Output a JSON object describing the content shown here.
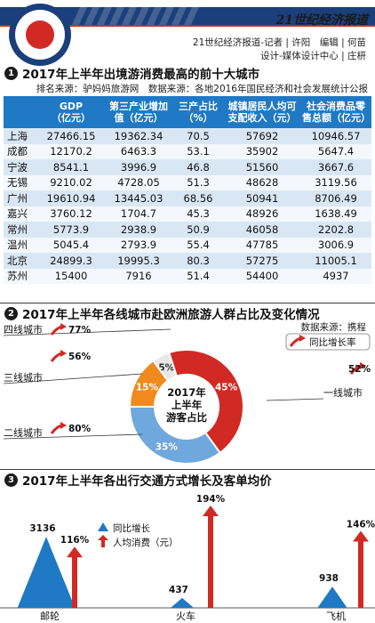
{
  "header": {
    "paper_name": "21世纪经济报道",
    "credit_line1": "21世纪经济报道-记者 | 许阳　编辑 | 何苗",
    "credit_line2": "设计-媒体设计中心 | 庄枅"
  },
  "colors": {
    "blue": "#1f79c4",
    "red": "#d12a24",
    "orange": "#f08a1d",
    "light_blue": "#6fa8dc",
    "navy": "#1b3f7a"
  },
  "section1": {
    "number": "1",
    "title": "2017年上半年出境游消费最高的前十大城市",
    "note": "排名来源：驴妈妈旅游网　数据来源：各地2016年国民经济和社会发展统计公报"
  },
  "section2": {
    "number": "2",
    "title": "2017年上半年各线城市赴欧洲旅游人群占比及变化情况",
    "source": "数据来源：携程"
  },
  "section3": {
    "number": "3",
    "title": "2017年上半年各出行交通方式增长及客单均价"
  },
  "chart_data": [
    {
      "type": "table",
      "columns": [
        "",
        "GDP\n（亿元）",
        "第三产业增加\n值（亿元）",
        "三产占比\n（%）",
        "城镇居民人均可\n支配收入（元）",
        "社会消费品零\n售总额（亿元）"
      ],
      "rows": [
        [
          "上海",
          "27466.15",
          "19362.34",
          "70.5",
          "57692",
          "10946.57"
        ],
        [
          "成都",
          "12170.2",
          "6463.3",
          "53.1",
          "35902",
          "5647.4"
        ],
        [
          "宁波",
          "8541.1",
          "3996.9",
          "46.8",
          "51560",
          "3667.6"
        ],
        [
          "无锡",
          "9210.02",
          "4728.05",
          "51.3",
          "48628",
          "3119.56"
        ],
        [
          "广州",
          "19610.94",
          "13445.03",
          "68.56",
          "50941",
          "8706.49"
        ],
        [
          "嘉兴",
          "3760.12",
          "1704.7",
          "45.3",
          "48926",
          "1638.49"
        ],
        [
          "常州",
          "5773.9",
          "2938.9",
          "50.9",
          "46058",
          "2202.8"
        ],
        [
          "温州",
          "5045.4",
          "2793.9",
          "55.4",
          "47785",
          "3006.9"
        ],
        [
          "北京",
          "24899.3",
          "19995.3",
          "80.3",
          "57275",
          "11005.1"
        ],
        [
          "苏州",
          "15400",
          "7916",
          "51.4",
          "54400",
          "4937"
        ]
      ]
    },
    {
      "type": "pie",
      "title": "2017年\n上半年\n游客占比",
      "slices": [
        {
          "label": "四线城市",
          "value": 5,
          "value_label": "5%",
          "growth": "77%",
          "color": "#e8e8e8"
        },
        {
          "label": "一线城市",
          "value": 45,
          "value_label": "45%",
          "growth": "52%",
          "color": "#d12a24"
        },
        {
          "label": "二线城市",
          "value": 35,
          "value_label": "35%",
          "growth": "80%",
          "color": "#6fa8dc"
        },
        {
          "label": "三线城市",
          "value": 15,
          "value_label": "15%",
          "growth": "56%",
          "color": "#f08a1d"
        }
      ],
      "legend": {
        "label": "同比增长率",
        "placement": "top-right"
      }
    },
    {
      "type": "bar",
      "categories": [
        "邮轮",
        "火车",
        "飞机"
      ],
      "series": [
        {
          "name": "同比增长",
          "values": [
            116,
            194,
            146
          ],
          "value_labels": [
            "116%",
            "194%",
            "146%"
          ],
          "color": "#d12a24"
        },
        {
          "name": "人均消费（元）",
          "values": [
            3136,
            437,
            938
          ],
          "value_labels": [
            "3136",
            "437",
            "938"
          ],
          "color": "#1f79c4"
        }
      ],
      "legend_items": [
        "同比增长",
        "人均消费（元）"
      ]
    }
  ]
}
